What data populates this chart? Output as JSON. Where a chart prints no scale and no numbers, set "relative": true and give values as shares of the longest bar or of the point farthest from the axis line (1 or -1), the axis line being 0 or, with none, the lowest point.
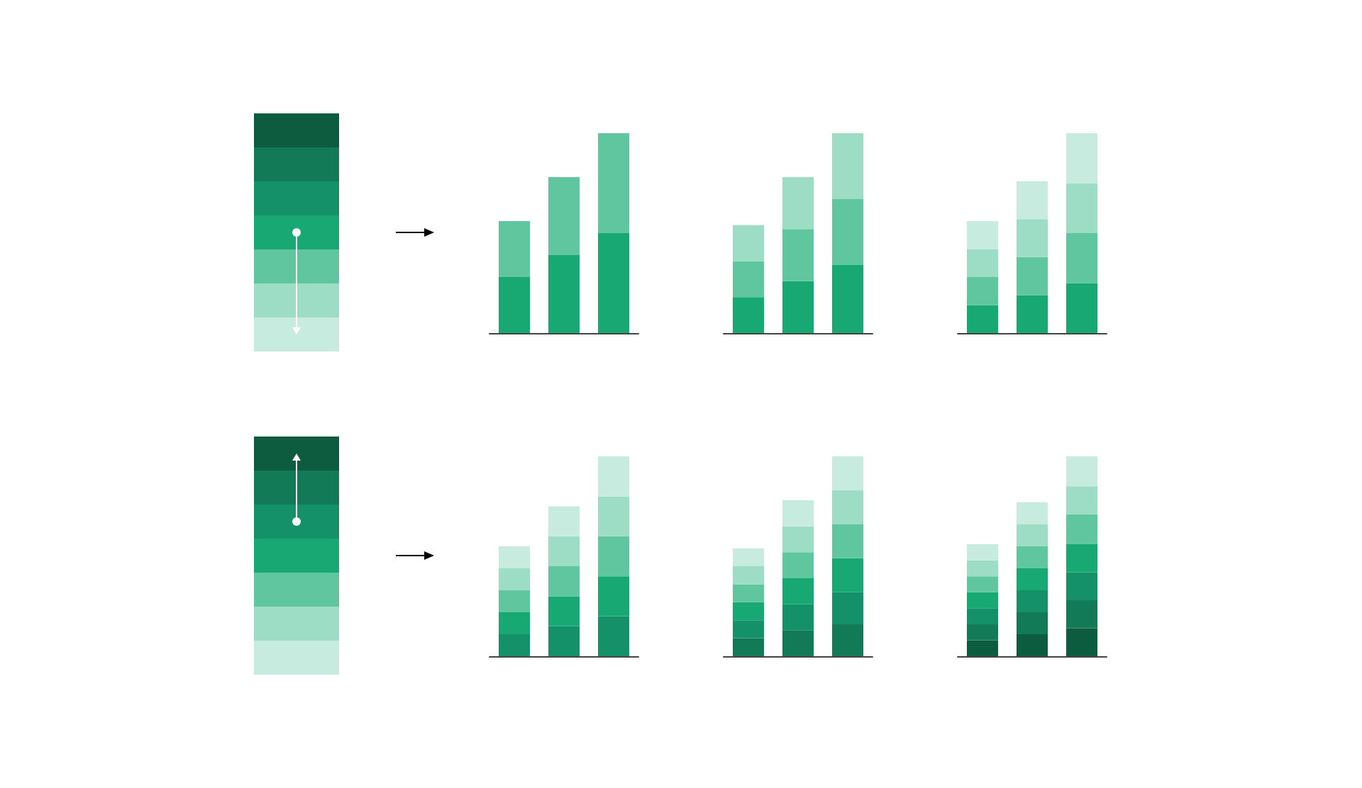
{
  "chart_data": [
    {
      "type": "bar",
      "stacked": true,
      "relative": true,
      "tick_labels": false,
      "categories": [
        null,
        null,
        null
      ],
      "series": [
        {
          "color": "#17a874",
          "values": [
            0.28,
            0.39,
            0.5
          ]
        },
        {
          "color": "#5fc6a0",
          "values": [
            0.28,
            0.39,
            0.5
          ]
        }
      ]
    },
    {
      "type": "bar",
      "stacked": true,
      "relative": true,
      "tick_labels": false,
      "categories": [
        null,
        null,
        null
      ],
      "series": [
        {
          "color": "#17a874",
          "values": [
            0.18,
            0.26,
            0.34
          ]
        },
        {
          "color": "#5fc6a0",
          "values": [
            0.18,
            0.26,
            0.33
          ]
        },
        {
          "color": "#9ddcc5",
          "values": [
            0.18,
            0.26,
            0.33
          ]
        }
      ]
    },
    {
      "type": "bar",
      "stacked": true,
      "relative": true,
      "tick_labels": false,
      "categories": [
        null,
        null,
        null
      ],
      "series": [
        {
          "color": "#17a874",
          "values": [
            0.14,
            0.19,
            0.25
          ]
        },
        {
          "color": "#5fc6a0",
          "values": [
            0.14,
            0.19,
            0.25
          ]
        },
        {
          "color": "#9ddcc5",
          "values": [
            0.14,
            0.19,
            0.25
          ]
        },
        {
          "color": "#c8ebdf",
          "values": [
            0.14,
            0.19,
            0.25
          ]
        }
      ]
    },
    {
      "type": "bar",
      "stacked": true,
      "relative": true,
      "tick_labels": false,
      "categories": [
        null,
        null,
        null
      ],
      "series": [
        {
          "color": "#15916a",
          "values": [
            0.11,
            0.15,
            0.2
          ]
        },
        {
          "color": "#17a874",
          "values": [
            0.11,
            0.15,
            0.2
          ]
        },
        {
          "color": "#5fc6a0",
          "values": [
            0.11,
            0.15,
            0.2
          ]
        },
        {
          "color": "#9ddcc5",
          "values": [
            0.11,
            0.15,
            0.2
          ]
        },
        {
          "color": "#c8ebdf",
          "values": [
            0.11,
            0.15,
            0.2
          ]
        }
      ]
    },
    {
      "type": "bar",
      "stacked": true,
      "relative": true,
      "tick_labels": false,
      "categories": [
        null,
        null,
        null
      ],
      "series": [
        {
          "color": "#137a57",
          "values": [
            0.09,
            0.13,
            0.16
          ]
        },
        {
          "color": "#15916a",
          "values": [
            0.09,
            0.13,
            0.16
          ]
        },
        {
          "color": "#17a874",
          "values": [
            0.09,
            0.13,
            0.17
          ]
        },
        {
          "color": "#5fc6a0",
          "values": [
            0.09,
            0.13,
            0.17
          ]
        },
        {
          "color": "#9ddcc5",
          "values": [
            0.09,
            0.13,
            0.17
          ]
        },
        {
          "color": "#c8ebdf",
          "values": [
            0.09,
            0.13,
            0.17
          ]
        }
      ]
    },
    {
      "type": "bar",
      "stacked": true,
      "relative": true,
      "tick_labels": false,
      "categories": [
        null,
        null,
        null
      ],
      "series": [
        {
          "color": "#0e5c40",
          "values": [
            0.08,
            0.11,
            0.14
          ]
        },
        {
          "color": "#137a57",
          "values": [
            0.08,
            0.11,
            0.14
          ]
        },
        {
          "color": "#15916a",
          "values": [
            0.08,
            0.11,
            0.14
          ]
        },
        {
          "color": "#17a874",
          "values": [
            0.08,
            0.11,
            0.14
          ]
        },
        {
          "color": "#5fc6a0",
          "values": [
            0.08,
            0.11,
            0.15
          ]
        },
        {
          "color": "#9ddcc5",
          "values": [
            0.08,
            0.11,
            0.14
          ]
        },
        {
          "color": "#c8ebdf",
          "values": [
            0.08,
            0.11,
            0.15
          ]
        }
      ]
    }
  ]
}
